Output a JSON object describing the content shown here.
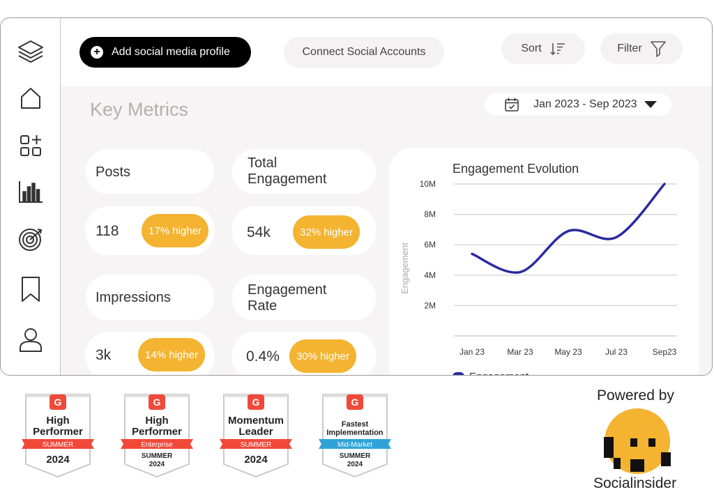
{
  "toolbar": {
    "add_profile_label": "Add social media profile",
    "connect_label": "Connect Social Accounts",
    "sort_label": "Sort",
    "filter_label": "Filter"
  },
  "sidebar": {
    "icons": [
      "layers-icon",
      "home-icon",
      "add-widget-icon",
      "bar-chart-icon",
      "target-icon",
      "bookmark-icon",
      "user-icon"
    ]
  },
  "metrics": {
    "title": "Key Metrics",
    "date_range": "Jan 2023 - Sep 2023",
    "posts": {
      "label": "Posts",
      "value": "118",
      "change": "17% higher"
    },
    "total_engagement": {
      "label_line1": "Total",
      "label_line2": "Engagement",
      "value": "54k",
      "change": "32% higher"
    },
    "impressions": {
      "label": "Impressions",
      "value": "3k",
      "change": "14% higher"
    },
    "engagement_rate": {
      "label_line1": "Engagement",
      "label_line2": "Rate",
      "value": "0.4%",
      "change": "30% higher"
    }
  },
  "chart_data": {
    "type": "line",
    "title": "Engagement Evolution",
    "ylabel": "Engagement",
    "xlabel": "",
    "categories": [
      "Jan 23",
      "Mar 23",
      "May 23",
      "Jul 23",
      "Sep23"
    ],
    "y_ticks": [
      "2M",
      "4M",
      "6M",
      "8M",
      "10M"
    ],
    "ylim": [
      0,
      10
    ],
    "series": [
      {
        "name": "Engagement",
        "color": "#2b2aa0",
        "x": [
          0,
          1,
          2,
          3,
          4
        ],
        "values": [
          5.4,
          4.2,
          6.9,
          6.5,
          10.0
        ]
      }
    ],
    "legend": "bottom-left",
    "grid": true
  },
  "awards": [
    {
      "line1": "High",
      "line2": "Performer",
      "ribbon": "SUMMER",
      "ribbon_color": "#f0493a",
      "year_line1": "2024",
      "year_line2": ""
    },
    {
      "line1": "High",
      "line2": "Performer",
      "ribbon": "Enterprise",
      "ribbon_color": "#f0493a",
      "year_line1": "SUMMER",
      "year_line2": "2024"
    },
    {
      "line1": "Momentum",
      "line2": "Leader",
      "ribbon": "SUMMER",
      "ribbon_color": "#f0493a",
      "year_line1": "2024",
      "year_line2": ""
    },
    {
      "line1": "Fastest",
      "line2": "Implementation",
      "ribbon": "Mid-Market",
      "ribbon_color": "#2fa3d8",
      "year_line1": "SUMMER",
      "year_line2": "2024"
    }
  ],
  "award_logo": "G",
  "footer": {
    "powered_by": "Powered by",
    "brand_name": "Socialinsider",
    "brand_color": "#f4b330"
  }
}
